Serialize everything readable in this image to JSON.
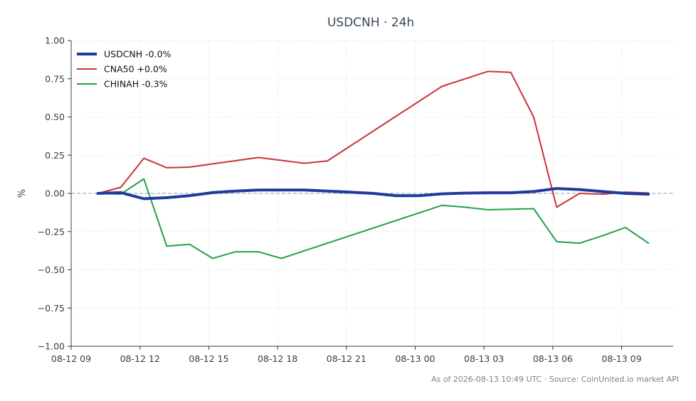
{
  "chart_data": {
    "type": "line",
    "title": "USDCNH · 24h",
    "ylabel": "%",
    "xlabel": "",
    "ylim": [
      -1.0,
      1.0
    ],
    "yticks": [
      1.0,
      0.75,
      0.5,
      0.25,
      0.0,
      -0.25,
      -0.5,
      -0.75,
      -1.0
    ],
    "ytick_labels": [
      "1.00",
      "0.75",
      "0.50",
      "0.25",
      "0.00",
      "−0.25",
      "−0.50",
      "−0.75",
      "−1.00"
    ],
    "xlim": [
      "2026-08-12 09:00",
      "2026-08-13 11:15"
    ],
    "xticks": [
      "2026-08-12 09:00",
      "2026-08-12 12:00",
      "2026-08-12 15:00",
      "2026-08-12 18:00",
      "2026-08-12 21:00",
      "2026-08-13 00:00",
      "2026-08-13 03:00",
      "2026-08-13 06:00",
      "2026-08-13 09:00"
    ],
    "xtick_labels": [
      "08-12 09",
      "08-12 12",
      "08-12 15",
      "08-12 18",
      "08-12 21",
      "08-13 00",
      "08-13 03",
      "08-13 06",
      "08-13 09"
    ],
    "grid": true,
    "legend_position": "top-left",
    "zero_line": true,
    "series": [
      {
        "name": "USDCNH -0.0%",
        "color": "#1f3a9e",
        "width": 4,
        "x": [
          "2026-08-12 10:10",
          "2026-08-12 11:10",
          "2026-08-12 12:10",
          "2026-08-12 13:10",
          "2026-08-12 14:10",
          "2026-08-12 15:10",
          "2026-08-12 16:10",
          "2026-08-12 17:10",
          "2026-08-12 18:10",
          "2026-08-12 19:10",
          "2026-08-12 20:10",
          "2026-08-12 21:10",
          "2026-08-12 22:10",
          "2026-08-12 23:10",
          "2026-08-13 00:10",
          "2026-08-13 01:10",
          "2026-08-13 02:10",
          "2026-08-13 03:10",
          "2026-08-13 04:10",
          "2026-08-13 05:10",
          "2026-08-13 06:10",
          "2026-08-13 07:10",
          "2026-08-13 08:10",
          "2026-08-13 09:10",
          "2026-08-13 10:10"
        ],
        "y": [
          0.0,
          0.005,
          -0.035,
          -0.028,
          -0.015,
          0.005,
          0.015,
          0.022,
          0.022,
          0.022,
          0.015,
          0.008,
          0.0,
          -0.015,
          -0.015,
          -0.003,
          0.002,
          0.004,
          0.004,
          0.012,
          0.032,
          0.025,
          0.012,
          0.0,
          -0.005
        ]
      },
      {
        "name": "CNA50 +0.0%",
        "color": "#c8323a",
        "width": 2,
        "x": [
          "2026-08-12 10:10",
          "2026-08-12 11:10",
          "2026-08-12 12:10",
          "2026-08-12 13:10",
          "2026-08-12 14:10",
          "2026-08-12 17:10",
          "2026-08-12 19:10",
          "2026-08-12 20:10",
          "2026-08-13 01:10",
          "2026-08-13 03:10",
          "2026-08-13 04:10",
          "2026-08-13 05:10",
          "2026-08-13 06:10",
          "2026-08-13 07:10",
          "2026-08-13 08:10",
          "2026-08-13 09:10",
          "2026-08-13 10:10"
        ],
        "y": [
          0.0,
          0.04,
          0.23,
          0.168,
          0.172,
          0.235,
          0.197,
          0.212,
          0.7,
          0.798,
          0.792,
          0.5,
          -0.09,
          0.0,
          -0.005,
          0.008,
          0.003
        ]
      },
      {
        "name": "CHINAH -0.3%",
        "color": "#22a04a",
        "width": 2,
        "x": [
          "2026-08-12 10:10",
          "2026-08-12 11:10",
          "2026-08-12 12:10",
          "2026-08-12 13:10",
          "2026-08-12 14:10",
          "2026-08-12 15:10",
          "2026-08-12 16:10",
          "2026-08-12 17:10",
          "2026-08-12 18:10",
          "2026-08-13 01:10",
          "2026-08-13 02:10",
          "2026-08-13 03:10",
          "2026-08-13 05:10",
          "2026-08-13 06:10",
          "2026-08-13 07:10",
          "2026-08-13 08:10",
          "2026-08-13 09:10",
          "2026-08-13 10:10"
        ],
        "y": [
          0.0,
          -0.005,
          0.095,
          -0.345,
          -0.333,
          -0.425,
          -0.382,
          -0.382,
          -0.425,
          -0.078,
          -0.09,
          -0.107,
          -0.1,
          -0.316,
          -0.326,
          -0.277,
          -0.223,
          -0.325
        ]
      }
    ]
  },
  "footer": {
    "text": "As of 2026-08-13 10:49 UTC · Source: CoinUnited.io market API"
  }
}
